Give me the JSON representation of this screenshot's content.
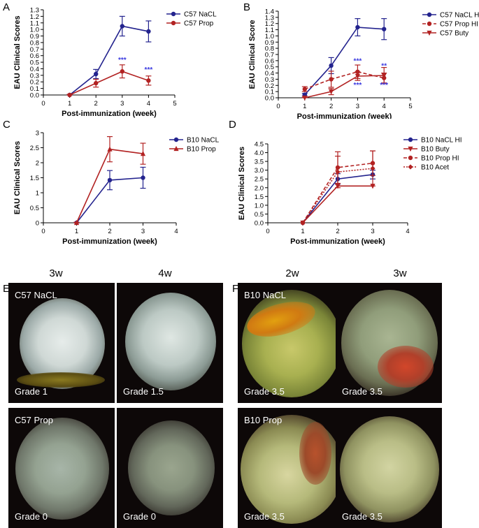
{
  "charts": [
    {
      "panel": "A",
      "ylabel": "EAU Clinical Scores",
      "xlabel": "Post-immunization (week)",
      "xlim": [
        0,
        5
      ],
      "ylim": [
        0,
        1.3
      ],
      "xticks": [
        "0",
        "1",
        "2",
        "3",
        "4",
        "5"
      ],
      "yticks": [
        "0.0",
        "0.1",
        "0.2",
        "0.3",
        "0.4",
        "0.5",
        "0.6",
        "0.7",
        "0.8",
        "0.9",
        "1.0",
        "1.1",
        "1.2",
        "1.3"
      ],
      "legend": [
        {
          "label": "C57 NaCL",
          "color": "#23238e",
          "marker": "circle",
          "dash": ""
        },
        {
          "label": "C57 Prop",
          "color": "#b22222",
          "marker": "circle",
          "dash": ""
        }
      ]
    },
    {
      "panel": "B",
      "ylabel": "EAU Clinical Score",
      "xlabel": "Post-immunization (week)",
      "xlim": [
        0,
        5
      ],
      "ylim": [
        0,
        1.4
      ],
      "xticks": [
        "0",
        "1",
        "2",
        "3",
        "4",
        "5"
      ],
      "yticks": [
        "0.0",
        "0.1",
        "0.2",
        "0.3",
        "0.4",
        "0.5",
        "0.6",
        "0.7",
        "0.8",
        "0.9",
        "1.0",
        "1.1",
        "1.2",
        "1.3",
        "1.4"
      ],
      "legend": [
        {
          "label": "C57 NaCL HI",
          "color": "#23238e",
          "marker": "circle",
          "dash": ""
        },
        {
          "label": "C57 Prop HI",
          "color": "#b22222",
          "marker": "circle",
          "dash": "5,3"
        },
        {
          "label": "C57 Buty",
          "color": "#b22222",
          "marker": "tri-down",
          "dash": ""
        }
      ]
    },
    {
      "panel": "C",
      "ylabel": "EAU Clinical Scores",
      "xlabel": "Post-immunization (week)",
      "xlim": [
        0,
        4
      ],
      "ylim": [
        0,
        3
      ],
      "xticks": [
        "0",
        "1",
        "2",
        "3",
        "4"
      ],
      "yticks": [
        "0",
        "0.5",
        "1",
        "1.5",
        "2",
        "2.5",
        "3"
      ],
      "legend": [
        {
          "label": "B10 NaCL",
          "color": "#23238e",
          "marker": "circle",
          "dash": ""
        },
        {
          "label": "B10 Prop",
          "color": "#b22222",
          "marker": "tri-up",
          "dash": ""
        }
      ]
    },
    {
      "panel": "D",
      "ylabel": "EAU Clinical Scores",
      "xlabel": "Post-immunization (week)",
      "xlim": [
        0,
        4
      ],
      "ylim": [
        0,
        4.5
      ],
      "xticks": [
        "0",
        "1",
        "2",
        "3",
        "4"
      ],
      "yticks": [
        "0.0",
        "0.5",
        "1.0",
        "1.5",
        "2.0",
        "2.5",
        "3.0",
        "3.5",
        "4.0",
        "4.5"
      ],
      "legend": [
        {
          "label": "B10 NaCL HI",
          "color": "#23238e",
          "marker": "circle",
          "dash": ""
        },
        {
          "label": "B10 Buty",
          "color": "#b22222",
          "marker": "tri-down",
          "dash": ""
        },
        {
          "label": "B10 Prop HI",
          "color": "#b22222",
          "marker": "circle",
          "dash": "5,3"
        },
        {
          "label": "B10 Acet",
          "color": "#b22222",
          "marker": "diamond",
          "dash": "2,2"
        }
      ]
    }
  ],
  "chart_data": [
    {
      "type": "line",
      "panel": "A",
      "ylabel": "EAU Clinical Scores",
      "xlabel": "Post-immunization (week)",
      "x": [
        1,
        2,
        3,
        4
      ],
      "ylim": [
        0,
        1.3
      ],
      "xlim": [
        0,
        5
      ],
      "series": [
        {
          "name": "C57 NaCL",
          "y": [
            0.0,
            0.32,
            1.05,
            0.97
          ],
          "err": [
            0.01,
            0.07,
            0.15,
            0.16
          ]
        },
        {
          "name": "C57 Prop",
          "y": [
            0.0,
            0.18,
            0.36,
            0.22
          ],
          "err": [
            0.01,
            0.06,
            0.1,
            0.07
          ]
        }
      ],
      "annotations": [
        {
          "x": 3,
          "y": 0.5,
          "text": "***"
        },
        {
          "x": 4,
          "y": 0.35,
          "text": "***"
        }
      ]
    },
    {
      "type": "line",
      "panel": "B",
      "ylabel": "EAU Clinical Score",
      "xlabel": "Post-immunization (week)",
      "x": [
        1,
        2,
        3,
        4
      ],
      "ylim": [
        0,
        1.4
      ],
      "xlim": [
        0,
        5
      ],
      "series": [
        {
          "name": "C57 NaCL HI",
          "y": [
            0.05,
            0.52,
            1.14,
            1.11
          ],
          "err": [
            0.02,
            0.13,
            0.14,
            0.17
          ]
        },
        {
          "name": "C57 Prop HI",
          "y": [
            0.14,
            0.3,
            0.42,
            0.32
          ],
          "err": [
            0.04,
            0.13,
            0.11,
            0.08
          ]
        },
        {
          "name": "C57 Buty",
          "y": [
            0.0,
            0.1,
            0.35,
            0.36
          ],
          "err": [
            0.01,
            0.05,
            0.07,
            0.13
          ]
        }
      ],
      "annotations": [
        {
          "x": 3,
          "y": 0.56,
          "text": "***"
        },
        {
          "x": 4,
          "y": 0.48,
          "text": "**"
        },
        {
          "x": 3,
          "y": 0.17,
          "text": "***"
        },
        {
          "x": 4,
          "y": 0.17,
          "text": "***"
        }
      ]
    },
    {
      "type": "line",
      "panel": "C",
      "ylabel": "EAU Clinical Scores",
      "xlabel": "Post-immunization (week)",
      "x": [
        1,
        2,
        3
      ],
      "ylim": [
        0,
        3
      ],
      "xlim": [
        0,
        4
      ],
      "series": [
        {
          "name": "B10 NaCL",
          "y": [
            0.0,
            1.42,
            1.5
          ],
          "err": [
            0.02,
            0.32,
            0.35
          ]
        },
        {
          "name": "B10 Prop",
          "y": [
            0.0,
            2.45,
            2.3
          ],
          "err": [
            0.02,
            0.42,
            0.35
          ]
        }
      ]
    },
    {
      "type": "line",
      "panel": "D",
      "ylabel": "EAU Clinical Scores",
      "xlabel": "Post-immunization (week)",
      "x": [
        1,
        2,
        3
      ],
      "ylim": [
        0,
        4.5
      ],
      "xlim": [
        0,
        4
      ],
      "series": [
        {
          "name": "B10 NaCL HI",
          "y": [
            0.0,
            2.5,
            2.75
          ],
          "err": [
            0.0,
            0.3,
            0.25
          ]
        },
        {
          "name": "B10 Buty",
          "y": [
            0.0,
            2.1,
            2.1
          ],
          "err": [
            0.0,
            0.0,
            0.0
          ]
        },
        {
          "name": "B10 Prop HI",
          "y": [
            0.0,
            3.15,
            3.4
          ],
          "err": [
            0.0,
            0.9,
            0.7
          ]
        },
        {
          "name": "B10 Acet",
          "y": [
            0.0,
            2.9,
            3.1
          ],
          "err": [
            0.0,
            0.9,
            1.0
          ]
        }
      ]
    }
  ],
  "photos": {
    "E": {
      "panel": "E",
      "columns": [
        "3w",
        "4w"
      ],
      "cells": [
        {
          "top": "C57 NaCL",
          "bottom": "Grade 1",
          "tone": "blue"
        },
        {
          "top": "",
          "bottom": "Grade 1.5",
          "tone": "blue"
        },
        {
          "top": "C57 Prop",
          "bottom": "Grade 0",
          "tone": "grey"
        },
        {
          "top": "",
          "bottom": "Grade 0",
          "tone": "grey"
        }
      ]
    },
    "F": {
      "panel": "F",
      "columns": [
        "2w",
        "3w"
      ],
      "cells": [
        {
          "top": "B10 NaCL",
          "bottom": "Grade 3.5",
          "tone": "orange"
        },
        {
          "top": "",
          "bottom": "Grade 3.5",
          "tone": "red"
        },
        {
          "top": "B10 Prop",
          "bottom": "Grade 3.5",
          "tone": "mixed"
        },
        {
          "top": "",
          "bottom": "Grade 3.5",
          "tone": "green"
        }
      ]
    }
  }
}
